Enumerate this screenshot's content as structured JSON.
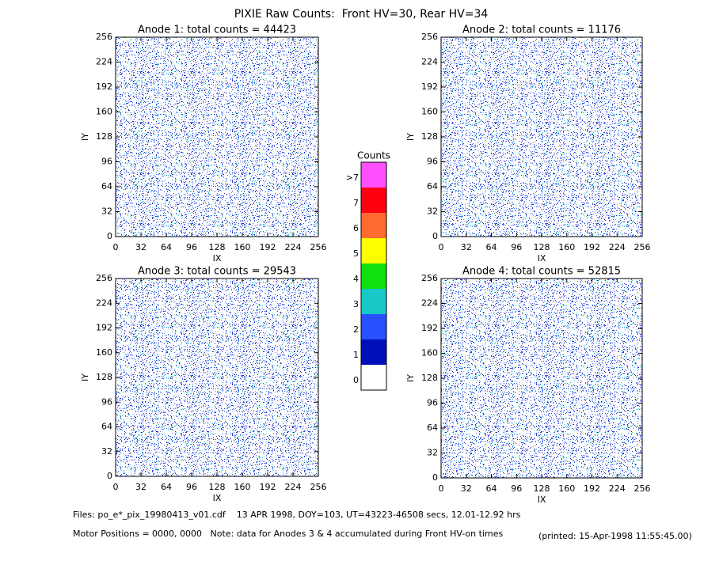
{
  "title": "PIXIE Raw Counts:  Front HV=30, Rear HV=34",
  "colorbar": {
    "title": "Counts",
    "levels": [
      0,
      1,
      2,
      3,
      4,
      5,
      6,
      7,
      ">7"
    ],
    "colors": [
      "#ffffff",
      "#0010b8",
      "#2850ff",
      "#18c8c8",
      "#10e010",
      "#ffff00",
      "#ff6a30",
      "#ff0010",
      "#ff50ff"
    ]
  },
  "footer": [
    "Files: po_e*_pix_19980413_v01.cdf    13 APR 1998, DOY=103, UT=43223-46508 secs, 12.01-12.92 hrs",
    "Motor Positions = 0000, 0000   Note: data for Anodes 3 & 4 accumulated during Front HV-on times",
    "(printed: 15-Apr-1998 11:55:45.00)"
  ],
  "chart_data": [
    {
      "type": "heatmap",
      "title": "Anode 1: total counts = 44423",
      "xlabel": "IX",
      "ylabel": "IY",
      "xlim": [
        0,
        256
      ],
      "ylim": [
        0,
        256
      ],
      "xticks": [
        0,
        32,
        64,
        96,
        128,
        160,
        192,
        224,
        256
      ],
      "yticks": [
        0,
        32,
        64,
        96,
        128,
        160,
        192,
        224,
        256
      ]
    },
    {
      "type": "heatmap",
      "title": "Anode 2: total counts = 11176",
      "xlabel": "IX",
      "ylabel": "IY",
      "xlim": [
        0,
        256
      ],
      "ylim": [
        0,
        256
      ],
      "xticks": [
        0,
        32,
        64,
        96,
        128,
        160,
        192,
        224,
        256
      ],
      "yticks": [
        0,
        32,
        64,
        96,
        128,
        160,
        192,
        224,
        256
      ]
    },
    {
      "type": "heatmap",
      "title": "Anode 3: total counts = 29543",
      "xlabel": "IX",
      "ylabel": "IY",
      "xlim": [
        0,
        256
      ],
      "ylim": [
        0,
        256
      ],
      "xticks": [
        0,
        32,
        64,
        96,
        128,
        160,
        192,
        224,
        256
      ],
      "yticks": [
        0,
        32,
        64,
        96,
        128,
        160,
        192,
        224,
        256
      ]
    },
    {
      "type": "heatmap",
      "title": "Anode 4: total counts = 52815",
      "xlabel": "IX",
      "ylabel": "IY",
      "xlim": [
        0,
        256
      ],
      "ylim": [
        0,
        256
      ],
      "xticks": [
        0,
        32,
        64,
        96,
        128,
        160,
        192,
        224,
        256
      ],
      "yticks": [
        0,
        32,
        64,
        96,
        128,
        160,
        192,
        224,
        256
      ]
    }
  ]
}
